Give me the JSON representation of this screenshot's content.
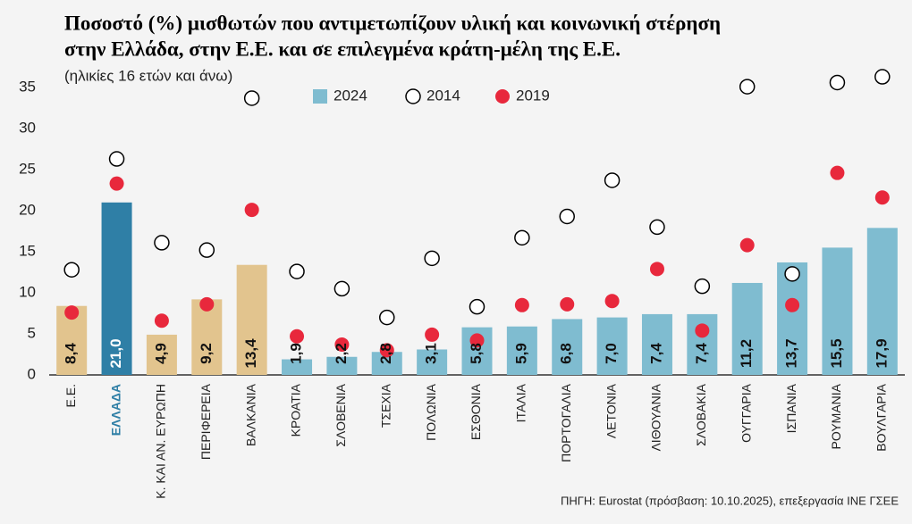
{
  "chart_data": {
    "type": "bar",
    "title": [
      "Ποσοστό (%) μισθωτών που αντιμετωπίζουν υλική και κοινωνική στέρηση",
      "στην Ελλάδα, στην Ε.Ε. και σε επιλεγμένα κράτη-μέλη της Ε.Ε."
    ],
    "subtitle": "(ηλικίες 16 ετών και άνω)",
    "source": "ΠΗΓΗ: Eurostat (πρόσβαση: 10.10.2025), επεξεργασία ΙΝΕ ΓΣΕΕ",
    "categories": [
      "Ε.Ε.",
      "ΕΛΛΑΔΑ",
      "Κ. ΚΑΙ ΑΝ. ΕΥΡΩΠΗ",
      "ΠΕΡΙΦΕΡΕΙΑ",
      "ΒΑΛΚΑΝΙΑ",
      "ΚΡΟΑΤΙΑ",
      "ΣΛΟΒΕΝΙΑ",
      "ΤΣΕΧΙΑ",
      "ΠΟΛΩΝΙΑ",
      "ΕΣΘΟΝΙΑ",
      "ΙΤΑΛΙΑ",
      "ΠΟΡΤΟΓΑΛΙΑ",
      "ΛΕΤΟΝΙΑ",
      "ΛΙΘΟΥΑΝΙΑ",
      "ΣΛΟΒΑΚΙΑ",
      "ΟΥΓΓΑΡΙΑ",
      "ΙΣΠΑΝΙΑ",
      "ΡΟΥΜΑΝΙΑ",
      "ΒΟΥΛΓΑΡΙΑ"
    ],
    "highlight": 1,
    "series": [
      {
        "name": "2024",
        "mark": "bar",
        "color": "#7fbcd0",
        "colors": [
          "#e2c48e",
          "#2f7fa6",
          "#e2c48e",
          "#e2c48e",
          "#e2c48e",
          "#7fbcd0",
          "#7fbcd0",
          "#7fbcd0",
          "#7fbcd0",
          "#7fbcd0",
          "#7fbcd0",
          "#7fbcd0",
          "#7fbcd0",
          "#7fbcd0",
          "#7fbcd0",
          "#7fbcd0",
          "#7fbcd0",
          "#7fbcd0",
          "#7fbcd0"
        ],
        "values": [
          8.4,
          21.0,
          4.9,
          9.2,
          13.4,
          1.9,
          2.2,
          2.8,
          3.1,
          5.8,
          5.9,
          6.8,
          7.0,
          7.4,
          7.4,
          11.2,
          13.7,
          15.5,
          17.9
        ],
        "value_labels": [
          "8,4",
          "21,0",
          "4,9",
          "9,2",
          "13,4",
          "1,9",
          "2,2",
          "2,8",
          "3,1",
          "5,8",
          "5,9",
          "6,8",
          "7,0",
          "7,4",
          "7,4",
          "11,2",
          "13,7",
          "15,5",
          "17,9"
        ]
      },
      {
        "name": "2014",
        "mark": "open-circle",
        "color": "#000000",
        "values": [
          12.8,
          26.3,
          16.1,
          15.2,
          33.7,
          12.6,
          10.5,
          7.0,
          14.2,
          8.3,
          16.7,
          19.3,
          23.7,
          18.0,
          10.8,
          35.1,
          12.3,
          35.6,
          36.3
        ]
      },
      {
        "name": "2019",
        "mark": "dot",
        "color": "#e8283c",
        "values": [
          7.6,
          23.3,
          6.6,
          8.6,
          20.1,
          4.7,
          3.7,
          3.0,
          4.9,
          4.2,
          8.5,
          8.6,
          9.0,
          12.9,
          5.4,
          15.8,
          8.5,
          24.6,
          21.6
        ]
      }
    ],
    "ylim": [
      0,
      37
    ],
    "yticks": [
      0,
      5,
      10,
      15,
      20,
      25,
      30,
      35
    ]
  }
}
